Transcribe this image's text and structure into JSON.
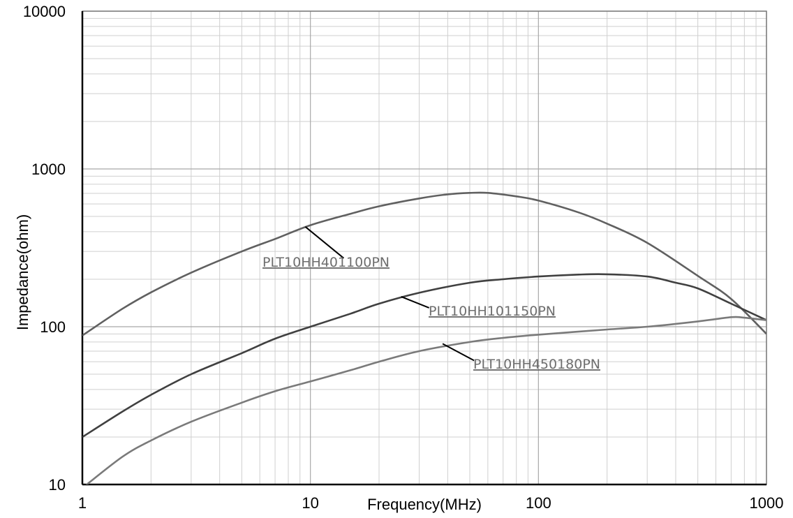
{
  "chart_data": {
    "type": "line",
    "title": "",
    "xlabel": "Frequency(MHz)",
    "ylabel": "Impedance(ohm)",
    "xscale": "log",
    "yscale": "log",
    "xlim": [
      1,
      1000
    ],
    "ylim": [
      10,
      10000
    ],
    "grid": true,
    "x_ticks": [
      {
        "value": 1,
        "label": "1"
      },
      {
        "value": 10,
        "label": "10"
      },
      {
        "value": 100,
        "label": "100"
      },
      {
        "value": 1000,
        "label": "1000"
      }
    ],
    "y_ticks": [
      {
        "value": 10,
        "label": "10"
      },
      {
        "value": 100,
        "label": "100"
      },
      {
        "value": 1000,
        "label": "1000"
      },
      {
        "value": 10000,
        "label": "10000"
      }
    ],
    "series": [
      {
        "name": "PLT10HH401100PN",
        "color": "#606060",
        "points": [
          [
            1,
            88
          ],
          [
            1.5,
            130
          ],
          [
            2,
            165
          ],
          [
            3,
            220
          ],
          [
            5,
            300
          ],
          [
            7,
            360
          ],
          [
            10,
            440
          ],
          [
            15,
            520
          ],
          [
            20,
            580
          ],
          [
            30,
            650
          ],
          [
            40,
            690
          ],
          [
            50,
            705
          ],
          [
            60,
            705
          ],
          [
            80,
            670
          ],
          [
            100,
            630
          ],
          [
            150,
            530
          ],
          [
            200,
            450
          ],
          [
            300,
            340
          ],
          [
            500,
            210
          ],
          [
            700,
            150
          ],
          [
            1000,
            90
          ]
        ],
        "annotation": {
          "text": "PLT10HH401100PN",
          "x": 9.5,
          "y": 430
        }
      },
      {
        "name": "PLT10HH101150PN",
        "color": "#404040",
        "points": [
          [
            1,
            20
          ],
          [
            1.5,
            29
          ],
          [
            2,
            37
          ],
          [
            3,
            50
          ],
          [
            5,
            68
          ],
          [
            7,
            84
          ],
          [
            10,
            100
          ],
          [
            15,
            121
          ],
          [
            20,
            140
          ],
          [
            30,
            164
          ],
          [
            50,
            190
          ],
          [
            70,
            200
          ],
          [
            100,
            208
          ],
          [
            150,
            214
          ],
          [
            200,
            215
          ],
          [
            300,
            208
          ],
          [
            400,
            190
          ],
          [
            500,
            175
          ],
          [
            700,
            140
          ],
          [
            1000,
            110
          ]
        ],
        "annotation": {
          "text": "PLT10HH101150PN",
          "x": 25,
          "y": 155
        }
      },
      {
        "name": "PLT10HH450180PN",
        "color": "#7a7a7a",
        "points": [
          [
            1,
            9.5
          ],
          [
            1.5,
            15
          ],
          [
            2,
            19
          ],
          [
            3,
            25
          ],
          [
            5,
            33
          ],
          [
            7,
            39
          ],
          [
            10,
            45
          ],
          [
            15,
            53
          ],
          [
            20,
            60
          ],
          [
            30,
            70
          ],
          [
            50,
            80
          ],
          [
            70,
            85
          ],
          [
            100,
            89
          ],
          [
            200,
            96
          ],
          [
            300,
            100
          ],
          [
            500,
            108
          ],
          [
            700,
            115
          ],
          [
            800,
            114
          ],
          [
            1000,
            110
          ]
        ],
        "annotation": {
          "text": "PLT10HH450180PN",
          "x": 38,
          "y": 78
        }
      }
    ]
  }
}
